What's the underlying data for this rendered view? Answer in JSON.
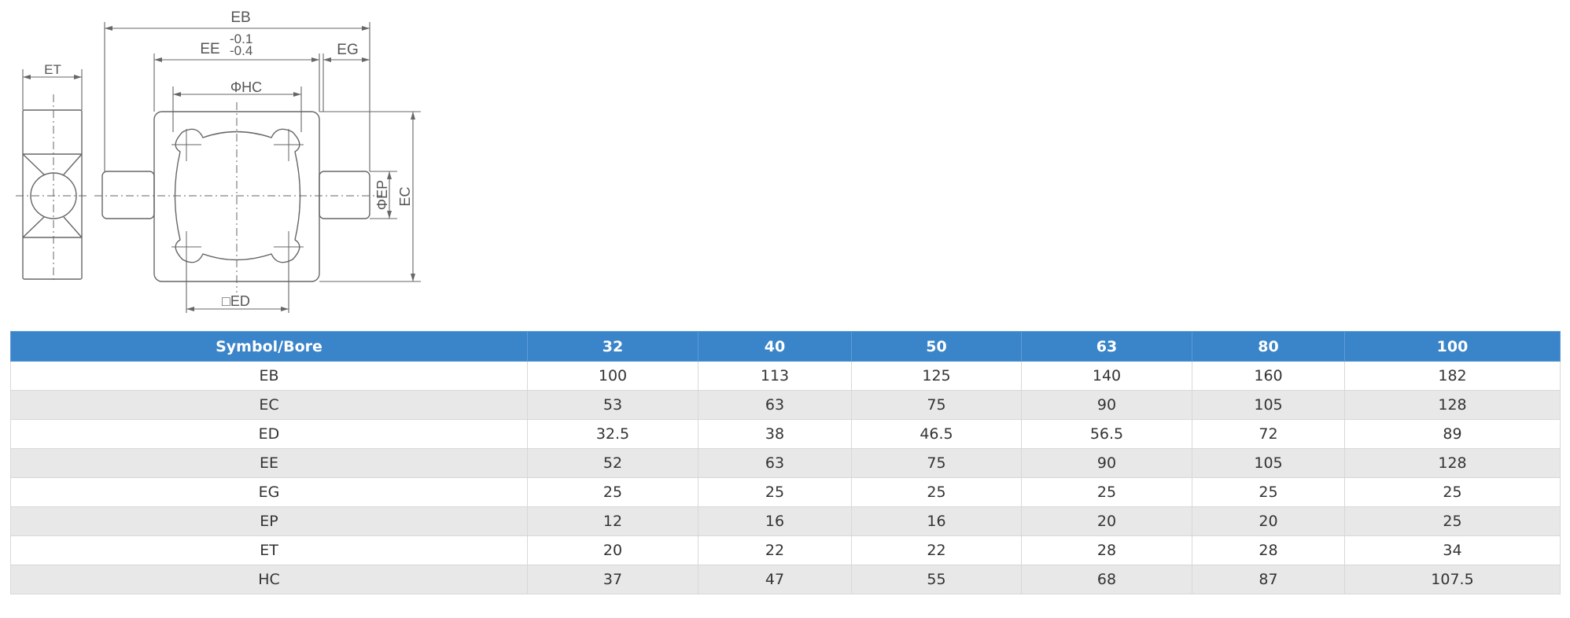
{
  "drawing": {
    "labels": {
      "eb": "EB",
      "ee": "EE",
      "ee_tol_upper": "-0.1",
      "ee_tol_lower": "-0.4",
      "eg": "EG",
      "et": "ET",
      "hc": "ΦHC",
      "ep": "ΦEP",
      "ec": "EC",
      "ed": "□ED"
    }
  },
  "table": {
    "headers": [
      "Symbol/Bore",
      "32",
      "40",
      "50",
      "63",
      "80",
      "100"
    ],
    "rows": [
      [
        "EB",
        "100",
        "113",
        "125",
        "140",
        "160",
        "182"
      ],
      [
        "EC",
        "53",
        "63",
        "75",
        "90",
        "105",
        "128"
      ],
      [
        "ED",
        "32.5",
        "38",
        "46.5",
        "56.5",
        "72",
        "89"
      ],
      [
        "EE",
        "52",
        "63",
        "75",
        "90",
        "105",
        "128"
      ],
      [
        "EG",
        "25",
        "25",
        "25",
        "25",
        "25",
        "25"
      ],
      [
        "EP",
        "12",
        "16",
        "16",
        "20",
        "20",
        "25"
      ],
      [
        "ET",
        "20",
        "22",
        "22",
        "28",
        "28",
        "34"
      ],
      [
        "HC",
        "37",
        "47",
        "55",
        "68",
        "87",
        "107.5"
      ]
    ]
  }
}
